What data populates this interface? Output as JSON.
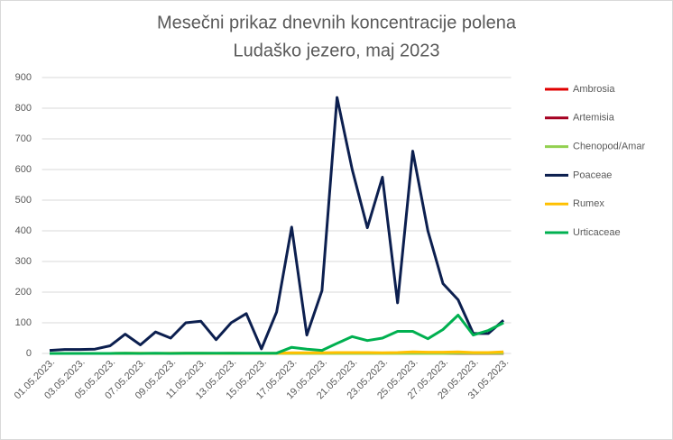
{
  "chart_data": {
    "type": "line",
    "title": "Mesečni prikaz dnevnih koncentracije polena",
    "subtitle": "Ludaško jezero, maj 2023",
    "categories": [
      "01.05.2023.",
      null,
      "03.05.2023.",
      null,
      "05.05.2023.",
      null,
      "07.05.2023.",
      null,
      "09.05.2023.",
      null,
      "11.05.2023.",
      null,
      "13.05.2023.",
      null,
      "15.05.2023.",
      null,
      "17.05.2023.",
      null,
      "19.05.2023.",
      null,
      "21.05.2023.",
      null,
      "23.05.2023.",
      null,
      "25.05.2023.",
      null,
      "27.05.2023.",
      null,
      "29.05.2023.",
      null,
      "31.05.2023."
    ],
    "series": [
      {
        "name": "Ambrosia",
        "color": "#e00000",
        "values": [
          0,
          0,
          0,
          0,
          0,
          0,
          0,
          0,
          0,
          0,
          0,
          0,
          0,
          0,
          0,
          0,
          0,
          0,
          0,
          0,
          0,
          0,
          0,
          0,
          0,
          0,
          0,
          0,
          0,
          0,
          0
        ]
      },
      {
        "name": "Artemisia",
        "color": "#a50021",
        "values": [
          0,
          0,
          0,
          0,
          0,
          0,
          0,
          0,
          0,
          0,
          0,
          0,
          0,
          0,
          0,
          0,
          0,
          0,
          0,
          0,
          0,
          0,
          0,
          0,
          0,
          0,
          0,
          0,
          0,
          0,
          0
        ]
      },
      {
        "name": "Chenopod/Amar",
        "color": "#92d050",
        "values": [
          0,
          0,
          0,
          0,
          0,
          0,
          0,
          0,
          0,
          0,
          0,
          0,
          0,
          0,
          0,
          0,
          0,
          0,
          0,
          0,
          0,
          0,
          0,
          0,
          0,
          0,
          0,
          1,
          1,
          1,
          1
        ]
      },
      {
        "name": "Poaceae",
        "color": "#0c1f4f",
        "values": [
          10,
          13,
          13,
          14,
          25,
          63,
          28,
          70,
          50,
          100,
          105,
          45,
          100,
          130,
          15,
          135,
          412,
          60,
          205,
          835,
          600,
          410,
          575,
          165,
          660,
          400,
          228,
          175,
          65,
          65,
          108
        ]
      },
      {
        "name": "Rumex",
        "color": "#ffc000",
        "values": [
          0,
          0,
          0,
          0,
          0,
          1,
          1,
          0,
          1,
          1,
          1,
          0,
          1,
          0,
          0,
          1,
          2,
          2,
          2,
          3,
          3,
          3,
          2,
          3,
          5,
          4,
          4,
          5,
          3,
          3,
          5
        ]
      },
      {
        "name": "Urticaceae",
        "color": "#00b050",
        "values": [
          0,
          0,
          0,
          0,
          0,
          1,
          0,
          1,
          0,
          1,
          1,
          1,
          1,
          1,
          1,
          1,
          20,
          14,
          10,
          33,
          55,
          42,
          50,
          72,
          72,
          48,
          78,
          125,
          60,
          75,
          100
        ]
      }
    ],
    "ylim": [
      0,
      900
    ],
    "yticks": [
      0,
      100,
      200,
      300,
      400,
      500,
      600,
      700,
      800,
      900
    ],
    "grid": true
  }
}
